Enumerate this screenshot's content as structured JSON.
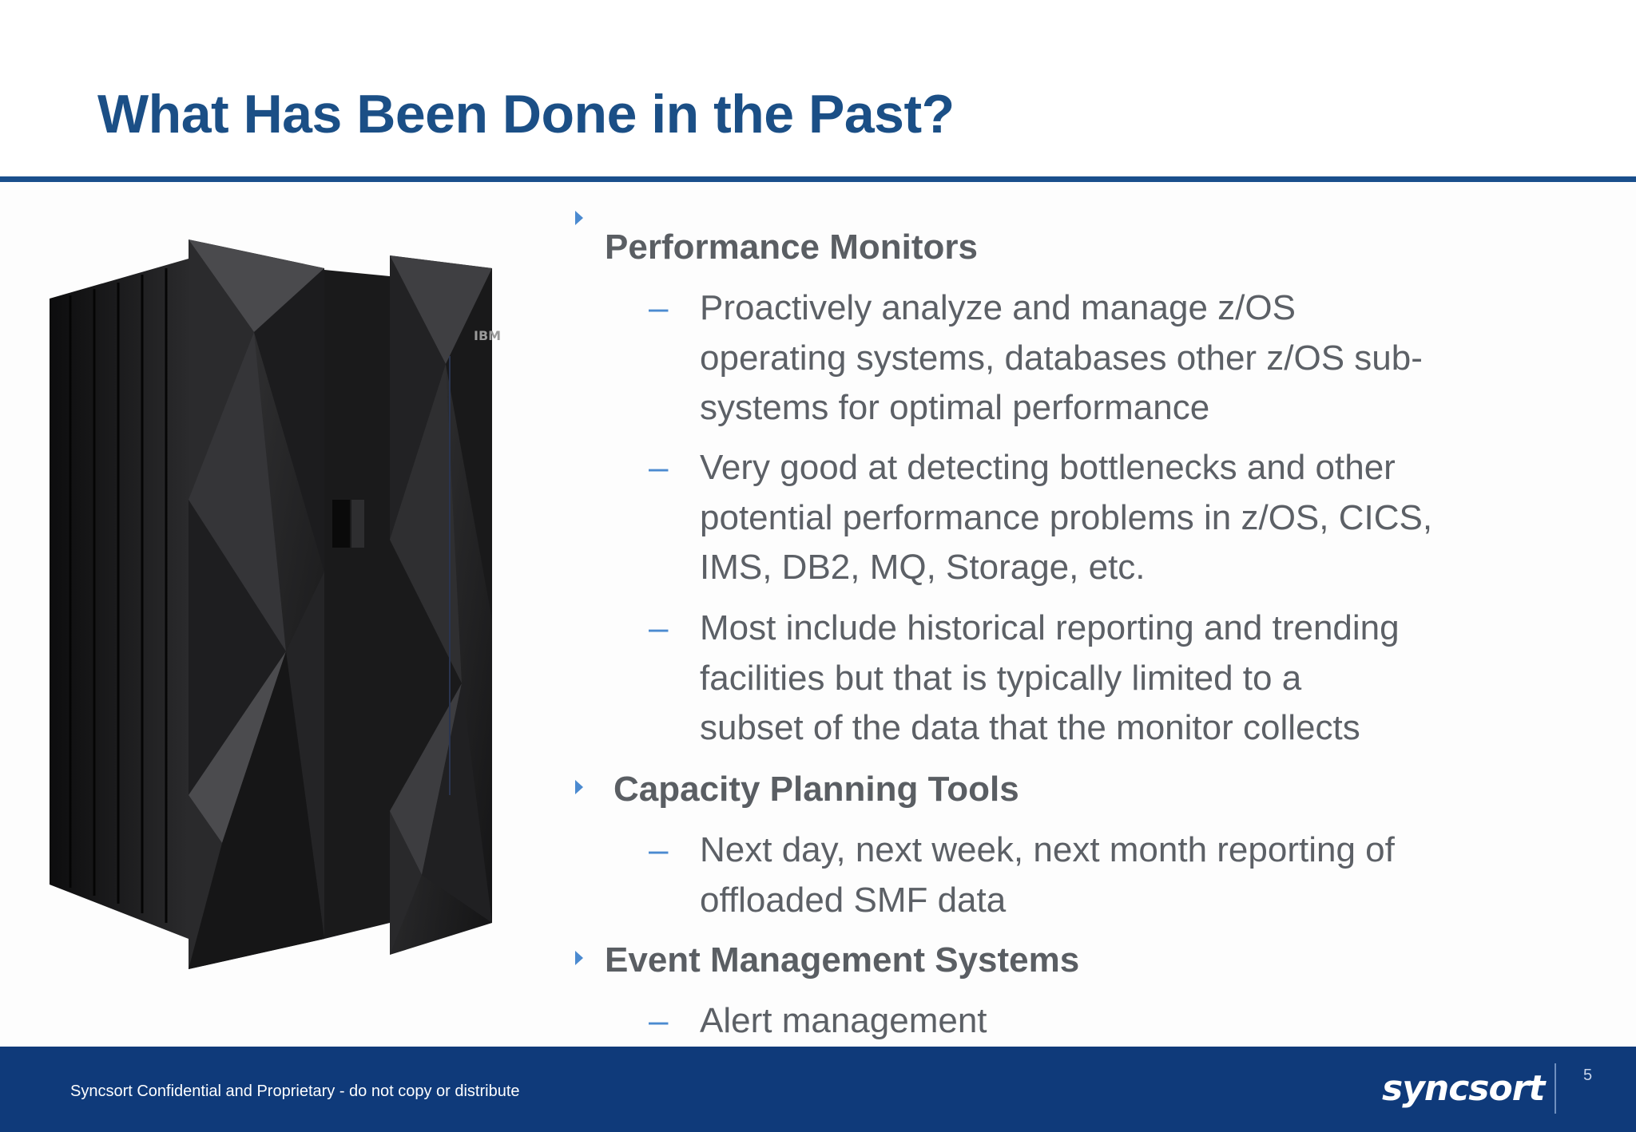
{
  "slide": {
    "title": "What Has Been Done in the Past?"
  },
  "bullets": [
    {
      "label": "Performance Monitors",
      "subitems": [
        [
          "Proactively analyze and manage z/OS",
          "operating systems, databases other z/OS sub-",
          "systems for optimal performance"
        ],
        [
          "Very good at detecting bottlenecks and other",
          "potential performance problems in z/OS, CICS,",
          "IMS, DB2, MQ, Storage, etc."
        ],
        [
          "Most include historical reporting and trending",
          "facilities but that is typically limited to a",
          "subset of the data that the monitor collects"
        ]
      ]
    },
    {
      "label": "Capacity Planning Tools",
      "subitems": [
        [
          "Next day, next week, next month reporting of",
          "offloaded SMF data"
        ]
      ]
    },
    {
      "label": "Event Management Systems",
      "subitems": [
        [
          "Alert management"
        ]
      ]
    }
  ],
  "dash_glyph": "–",
  "image": {
    "icon": "mainframe-server-image",
    "label": "IBM"
  },
  "footer": {
    "confidential": "Syncsort Confidential and Proprietary - do not copy or distribute",
    "brand": "syncsort",
    "page_number": "5"
  },
  "colors": {
    "title": "#1b4f86",
    "rule": "#1a4f8c",
    "footer_bg": "#0f3a7a",
    "bullet_accent": "#4b8ad0",
    "body_text": "#5c6066"
  }
}
